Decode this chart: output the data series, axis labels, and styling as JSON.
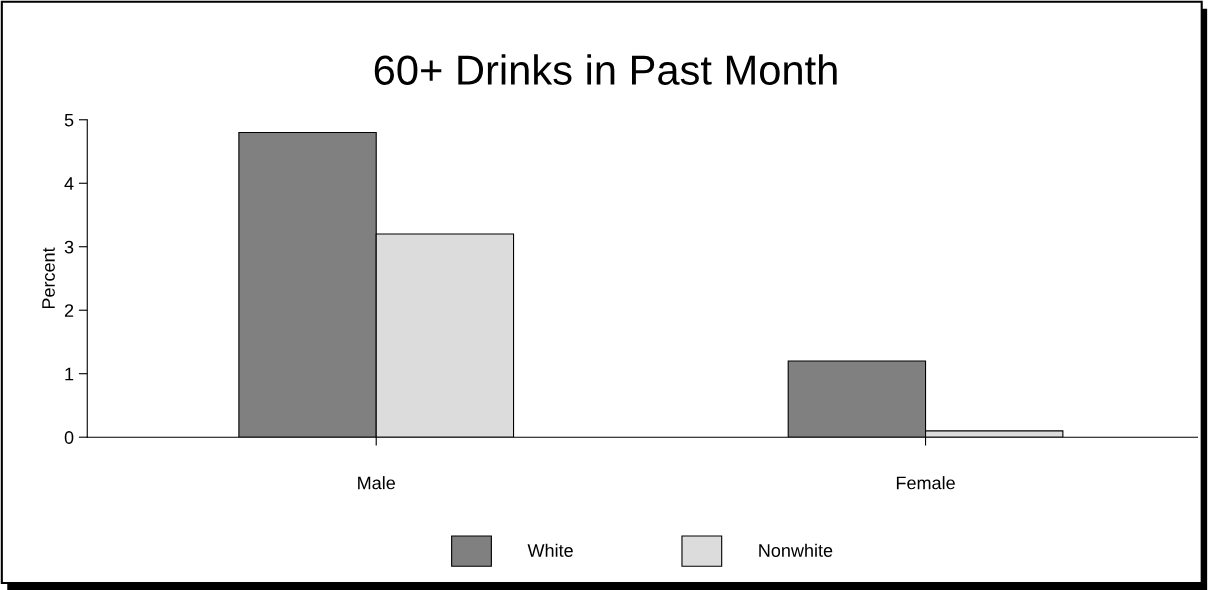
{
  "chart_data": {
    "type": "bar",
    "title": "60+ Drinks in Past Month",
    "ylabel": "Percent",
    "categories": [
      "Male",
      "Female"
    ],
    "series": [
      {
        "name": "White",
        "color": "#808080",
        "values": [
          4.8,
          1.2
        ]
      },
      {
        "name": "Nonwhite",
        "color": "#dcdcdc",
        "values": [
          3.2,
          0.1
        ]
      }
    ],
    "ylim": [
      0,
      5
    ],
    "yticks": [
      0,
      1,
      2,
      3,
      4,
      5
    ],
    "grid": false,
    "legend": "bottom"
  }
}
